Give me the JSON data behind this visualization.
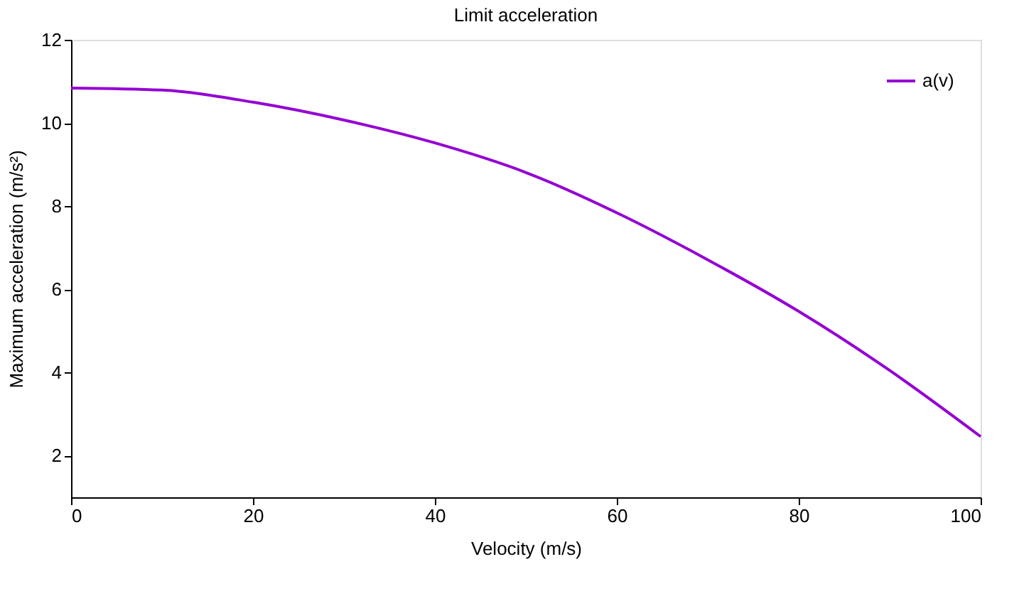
{
  "chart_data": {
    "type": "line",
    "title": "Limit acceleration",
    "xlabel": "Velocity (m/s)",
    "ylabel": "Maximum acceleration (m/s²)",
    "x": [
      0,
      10,
      20,
      30,
      40,
      50,
      60,
      70,
      80,
      90,
      100
    ],
    "series": [
      {
        "name": "a(v)",
        "color": "#9400d3",
        "values": [
          10.84,
          10.79,
          10.5,
          10.07,
          9.52,
          8.81,
          7.84,
          6.71,
          5.47,
          4.05,
          2.46
        ]
      }
    ],
    "xlim": [
      0,
      100
    ],
    "xticks": [
      0,
      20,
      40,
      60,
      80,
      100
    ],
    "ylim": [
      1,
      12
    ],
    "yticks": [
      2,
      4,
      6,
      8,
      10,
      12
    ],
    "grid": false,
    "legend": "top right",
    "marker": "none",
    "line_style": "solid"
  }
}
